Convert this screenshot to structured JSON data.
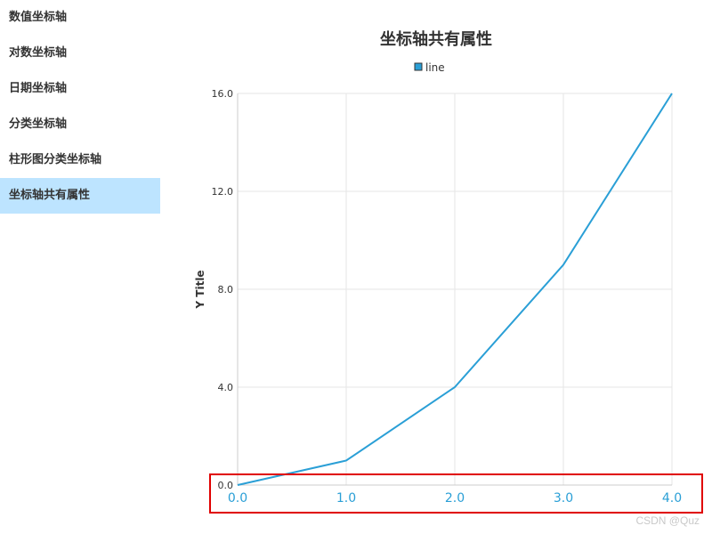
{
  "sidebar": {
    "items": [
      {
        "label": "数值坐标轴",
        "active": false
      },
      {
        "label": "对数坐标轴",
        "active": false
      },
      {
        "label": "日期坐标轴",
        "active": false
      },
      {
        "label": "分类坐标轴",
        "active": false
      },
      {
        "label": "柱形图分类坐标轴",
        "active": false
      },
      {
        "label": "坐标轴共有属性",
        "active": true
      }
    ]
  },
  "colors": {
    "series": "#2a9fd6",
    "x_tick_label": "#2a9fd6",
    "grid": "#e6e6e6",
    "highlight_box": "#e00000",
    "active_nav_bg": "#bde4ff"
  },
  "chart_data": {
    "type": "line",
    "title": "坐标轴共有属性",
    "legend": {
      "position": "top-center",
      "entries": [
        "line"
      ]
    },
    "xlabel": "",
    "ylabel": "Y Title",
    "x": [
      0,
      1,
      2,
      3,
      4
    ],
    "x_tick_labels": [
      "0.0",
      "1.0",
      "2.0",
      "3.0",
      "4.0"
    ],
    "xlim": [
      0,
      4
    ],
    "y_ticks": [
      "0.0",
      "4.0",
      "8.0",
      "12.0",
      "16.0"
    ],
    "ylim": [
      0,
      16
    ],
    "grid": true,
    "series": [
      {
        "name": "line",
        "values": [
          0,
          1,
          4,
          9,
          16
        ]
      }
    ],
    "annotation": "red box highlighting x-axis tick labels"
  },
  "watermark": "CSDN @Quz"
}
